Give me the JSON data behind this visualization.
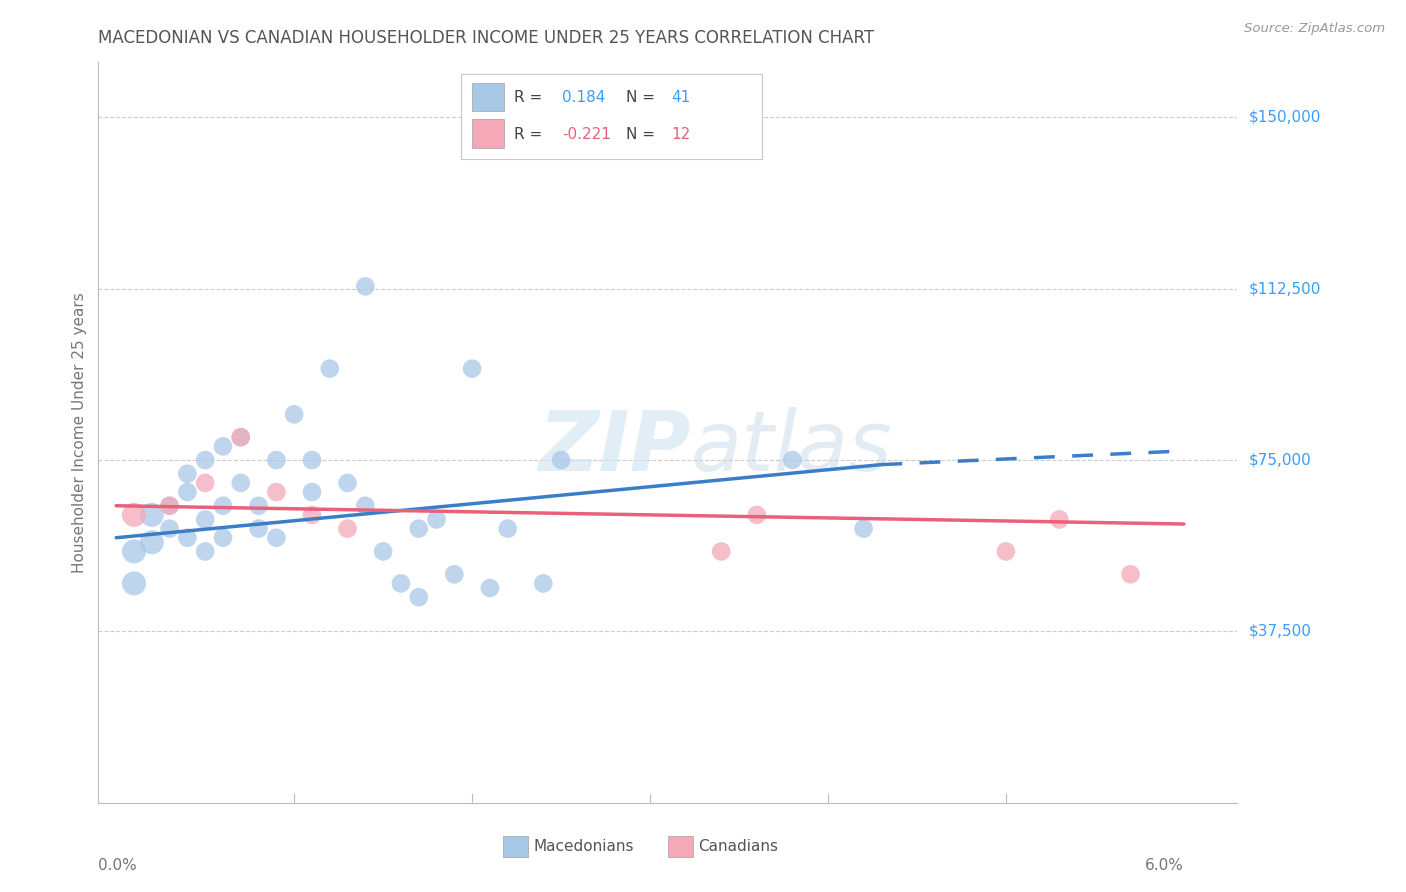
{
  "title": "MACEDONIAN VS CANADIAN HOUSEHOLDER INCOME UNDER 25 YEARS CORRELATION CHART",
  "source": "Source: ZipAtlas.com",
  "ylabel": "Householder Income Under 25 years",
  "xlim": [
    0.0,
    0.06
  ],
  "ylim": [
    0,
    162000
  ],
  "mac_color": "#A8C8E8",
  "can_color": "#F4A8B8",
  "mac_line_color": "#3B7EC8",
  "can_line_color": "#E8607A",
  "title_color": "#555555",
  "right_ytick_color": "#3B9EFF",
  "watermark_color": "#D8E8F0",
  "macedonians_x": [
    0.001,
    0.001,
    0.002,
    0.002,
    0.003,
    0.003,
    0.004,
    0.004,
    0.004,
    0.005,
    0.005,
    0.005,
    0.006,
    0.006,
    0.006,
    0.007,
    0.007,
    0.008,
    0.008,
    0.009,
    0.009,
    0.01,
    0.011,
    0.011,
    0.012,
    0.013,
    0.014,
    0.014,
    0.015,
    0.016,
    0.017,
    0.017,
    0.018,
    0.019,
    0.02,
    0.021,
    0.022,
    0.024,
    0.025,
    0.038,
    0.042
  ],
  "macedonians_y": [
    55000,
    48000,
    57000,
    63000,
    60000,
    65000,
    68000,
    72000,
    58000,
    62000,
    55000,
    75000,
    65000,
    78000,
    58000,
    70000,
    80000,
    65000,
    60000,
    75000,
    58000,
    85000,
    75000,
    68000,
    95000,
    70000,
    113000,
    65000,
    55000,
    48000,
    60000,
    45000,
    62000,
    50000,
    95000,
    47000,
    60000,
    48000,
    75000,
    75000,
    60000
  ],
  "canadians_x": [
    0.001,
    0.003,
    0.005,
    0.007,
    0.009,
    0.011,
    0.013,
    0.034,
    0.036,
    0.05,
    0.053,
    0.057
  ],
  "canadians_y": [
    63000,
    65000,
    70000,
    80000,
    68000,
    63000,
    60000,
    55000,
    63000,
    55000,
    62000,
    50000
  ]
}
